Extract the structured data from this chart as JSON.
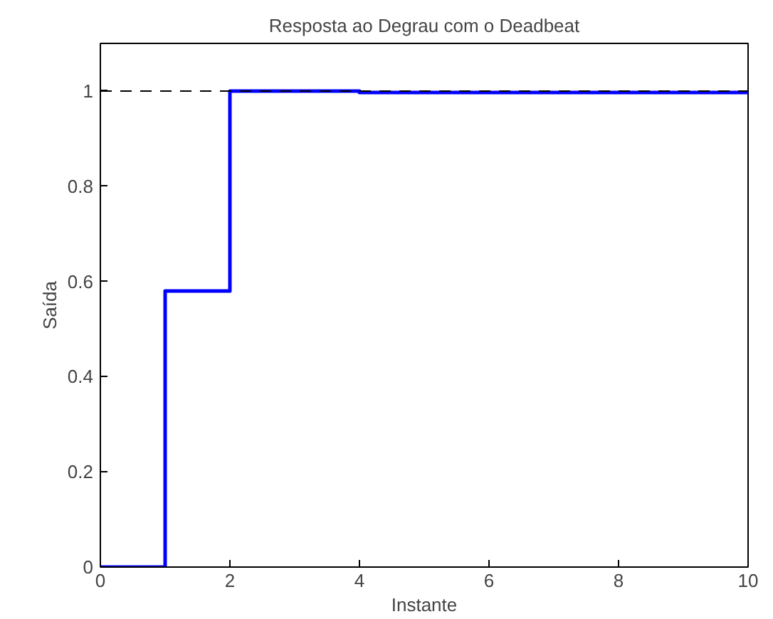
{
  "chart_data": {
    "type": "step",
    "title": "Resposta ao Degrau com o Deadbeat",
    "xlabel": "Instante",
    "ylabel": "Saída",
    "x": [
      0,
      1,
      2,
      3,
      4,
      5,
      6,
      7,
      8,
      9,
      10
    ],
    "series": [
      {
        "color": "#0000ff",
        "values": [
          0,
          0.58,
          1.0,
          1.0,
          0.997,
          0.997,
          0.997,
          0.997,
          0.997,
          0.997,
          0.997
        ]
      }
    ],
    "ref_lines": [
      {
        "axis": "y",
        "value": 1,
        "color": "#000000",
        "line_style": "dashed"
      }
    ],
    "xlim": [
      0,
      10
    ],
    "ylim": [
      0,
      1.1
    ],
    "xticks": [
      0,
      2,
      4,
      6,
      8,
      10
    ],
    "yticks": [
      0,
      0.2,
      0.4,
      0.6,
      0.8,
      1
    ],
    "grid": false
  }
}
